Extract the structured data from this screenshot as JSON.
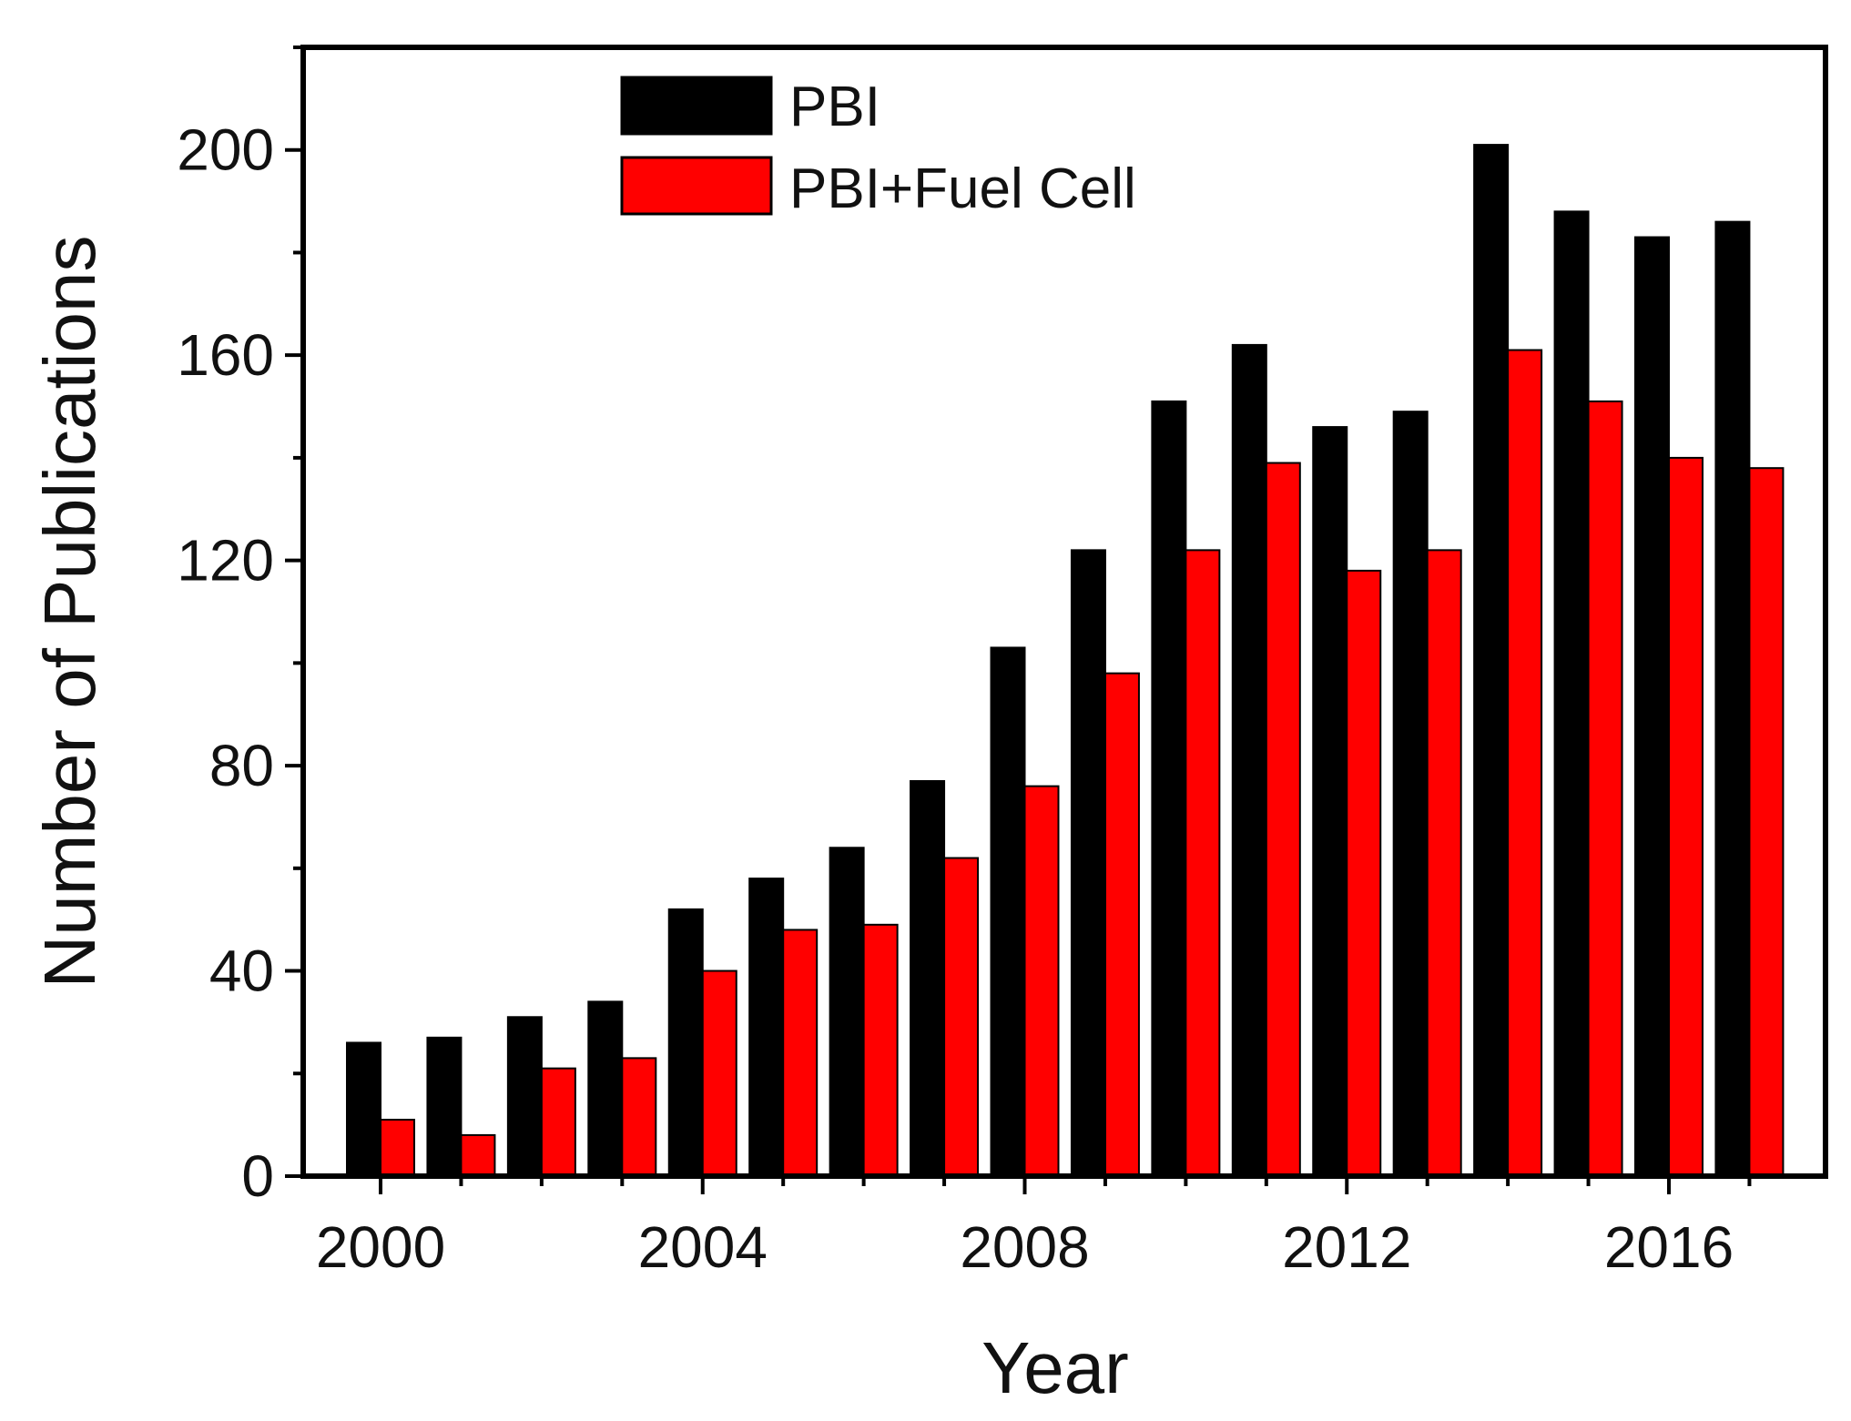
{
  "chart_data": {
    "type": "bar",
    "title": "",
    "xlabel": "Year",
    "ylabel": "Number of Publications",
    "categories": [
      "2000",
      "2001",
      "2002",
      "2003",
      "2004",
      "2005",
      "2006",
      "2007",
      "2008",
      "2009",
      "2010",
      "2011",
      "2012",
      "2013",
      "2014",
      "2015",
      "2016",
      "2017"
    ],
    "x_tick_labels": [
      "2000",
      "2004",
      "2008",
      "2012",
      "2016"
    ],
    "y_tick_labels": [
      "0",
      "40",
      "80",
      "120",
      "160",
      "200"
    ],
    "y_ticks": [
      0,
      40,
      80,
      120,
      160,
      200
    ],
    "ylim": [
      0,
      220
    ],
    "grid": false,
    "legend_position": "top-center",
    "series": [
      {
        "name": "PBI",
        "color": "#000000",
        "values": [
          26,
          27,
          31,
          34,
          52,
          58,
          64,
          77,
          103,
          122,
          151,
          162,
          146,
          149,
          201,
          188,
          183,
          186
        ]
      },
      {
        "name": "PBI+Fuel Cell",
        "color": "#ff0000",
        "values": [
          11,
          8,
          21,
          23,
          40,
          48,
          49,
          62,
          76,
          98,
          122,
          139,
          118,
          122,
          161,
          151,
          140,
          138
        ]
      }
    ]
  }
}
